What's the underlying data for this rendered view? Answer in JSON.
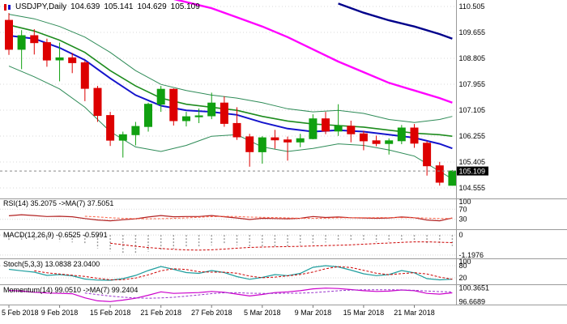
{
  "header": {
    "symbol": "USDJPY,Daily",
    "open": "104.639",
    "high": "105.141",
    "low": "104.629",
    "close": "105.109"
  },
  "colors": {
    "background": "#FFFFFF",
    "grid": "#D8D8D8",
    "bull": "#10A010",
    "bear": "#DD0000",
    "separator": "#9A9A9A",
    "current_price_line": "#888888",
    "price_label_bg": "#000000",
    "price_label_text": "#FFFFFF",
    "axis_text": "#000000"
  },
  "chart_data": {
    "type": "candlestick",
    "symbol": "USDJPY",
    "timeframe": "Daily",
    "current_price": 105.109,
    "y_ticks": [
      110.505,
      109.655,
      108.805,
      107.955,
      107.105,
      106.255,
      105.405,
      104.555
    ],
    "x_labels": [
      [
        0,
        "5 Feb 2018"
      ],
      [
        4,
        "9 Feb 2018"
      ],
      [
        8,
        "15 Feb 2018"
      ],
      [
        12,
        "21 Feb 2018"
      ],
      [
        16,
        "27 Feb 2018"
      ],
      [
        20,
        "5 Mar 2018"
      ],
      [
        24,
        "9 Mar 2018"
      ],
      [
        28,
        "15 Mar 2018"
      ],
      [
        32,
        "21 Mar 2018"
      ]
    ],
    "candles_ohlc": [
      [
        "5 Feb 2018",
        110.05,
        110.29,
        108.92,
        109.1
      ],
      [
        "6 Feb 2018",
        109.1,
        109.73,
        108.45,
        109.55
      ],
      [
        "7 Feb 2018",
        109.55,
        109.76,
        108.93,
        109.32
      ],
      [
        "8 Feb 2018",
        109.32,
        109.45,
        108.53,
        108.75
      ],
      [
        "9 Feb 2018",
        108.75,
        109.32,
        108.05,
        108.82
      ],
      [
        "12 Feb 2018",
        108.82,
        108.98,
        108.32,
        108.66
      ],
      [
        "13 Feb 2018",
        108.66,
        108.73,
        107.4,
        107.82
      ],
      [
        "14 Feb 2018",
        107.82,
        107.9,
        106.72,
        106.93
      ],
      [
        "15 Feb 2018",
        106.93,
        107.05,
        105.93,
        106.12
      ],
      [
        "16 Feb 2018",
        106.12,
        106.4,
        105.55,
        106.3
      ],
      [
        "19 Feb 2018",
        106.3,
        106.72,
        105.95,
        106.57
      ],
      [
        "20 Feb 2018",
        106.57,
        107.35,
        106.4,
        107.3
      ],
      [
        "21 Feb 2018",
        107.3,
        107.9,
        107.05,
        107.79
      ],
      [
        "22 Feb 2018",
        107.79,
        107.82,
        106.6,
        106.76
      ],
      [
        "23 Feb 2018",
        106.76,
        107.05,
        106.57,
        106.89
      ],
      [
        "26 Feb 2018",
        106.89,
        107.16,
        106.68,
        106.92
      ],
      [
        "27 Feb 2018",
        106.92,
        107.68,
        106.81,
        107.34
      ],
      [
        "28 Feb 2018",
        107.34,
        107.56,
        106.56,
        106.67
      ],
      [
        "1 Mar 2018",
        106.67,
        107.2,
        106.13,
        106.23
      ],
      [
        "2 Mar 2018",
        106.23,
        106.33,
        105.25,
        105.74
      ],
      [
        "5 Mar 2018",
        105.74,
        106.25,
        105.35,
        106.2
      ],
      [
        "6 Mar 2018",
        106.2,
        106.46,
        105.84,
        106.13
      ],
      [
        "7 Mar 2018",
        106.13,
        106.24,
        105.45,
        106.06
      ],
      [
        "8 Mar 2018",
        106.06,
        106.33,
        105.89,
        106.17
      ],
      [
        "9 Mar 2018",
        106.17,
        106.97,
        106.15,
        106.82
      ],
      [
        "12 Mar 2018",
        106.82,
        107.05,
        106.32,
        106.42
      ],
      [
        "13 Mar 2018",
        106.42,
        107.3,
        106.26,
        106.58
      ],
      [
        "14 Mar 2018",
        106.58,
        106.76,
        106.05,
        106.33
      ],
      [
        "15 Mar 2018",
        106.33,
        106.43,
        105.79,
        106.1
      ],
      [
        "16 Mar 2018",
        106.1,
        106.27,
        105.92,
        106.01
      ],
      [
        "19 Mar 2018",
        106.01,
        106.18,
        105.65,
        106.1
      ],
      [
        "20 Mar 2018",
        106.1,
        106.62,
        105.99,
        106.52
      ],
      [
        "21 Mar 2018",
        106.52,
        106.65,
        105.87,
        106.02
      ],
      [
        "22 Mar 2018",
        106.02,
        106.09,
        104.96,
        105.28
      ],
      [
        "23 Mar 2018",
        105.28,
        105.41,
        104.63,
        104.74
      ],
      [
        "26 Mar 2018",
        104.639,
        105.141,
        104.629,
        105.109
      ]
    ],
    "overlays": [
      {
        "name": "bollinger-upper-band",
        "color": "#2E8B57",
        "width": 1,
        "points": [
          [
            0,
            110.25
          ],
          [
            2,
            110.1
          ],
          [
            4,
            109.85
          ],
          [
            6,
            109.5
          ],
          [
            8,
            109.0
          ],
          [
            10,
            108.4
          ],
          [
            12,
            107.95
          ],
          [
            14,
            107.75
          ],
          [
            16,
            107.6
          ],
          [
            18,
            107.5
          ],
          [
            20,
            107.35
          ],
          [
            22,
            107.15
          ],
          [
            24,
            107.05
          ],
          [
            26,
            107.1
          ],
          [
            28,
            107.0
          ],
          [
            30,
            106.8
          ],
          [
            32,
            106.7
          ],
          [
            34,
            106.8
          ],
          [
            35,
            106.9
          ]
        ]
      },
      {
        "name": "bollinger-lower-band",
        "color": "#2E8B57",
        "width": 1,
        "points": [
          [
            0,
            108.55
          ],
          [
            2,
            108.2
          ],
          [
            4,
            107.8
          ],
          [
            6,
            107.2
          ],
          [
            8,
            106.4
          ],
          [
            10,
            105.9
          ],
          [
            12,
            105.75
          ],
          [
            14,
            105.95
          ],
          [
            16,
            106.25
          ],
          [
            18,
            106.3
          ],
          [
            20,
            105.9
          ],
          [
            22,
            105.75
          ],
          [
            24,
            105.85
          ],
          [
            26,
            106.0
          ],
          [
            28,
            105.95
          ],
          [
            30,
            105.8
          ],
          [
            32,
            105.6
          ],
          [
            34,
            105.1
          ],
          [
            35,
            104.85
          ]
        ]
      },
      {
        "name": "ma-green",
        "color": "#1E8C1E",
        "width": 1.6,
        "points": [
          [
            0,
            109.9
          ],
          [
            2,
            109.7
          ],
          [
            4,
            109.4
          ],
          [
            6,
            109.0
          ],
          [
            8,
            108.4
          ],
          [
            10,
            107.9
          ],
          [
            12,
            107.5
          ],
          [
            14,
            107.3
          ],
          [
            16,
            107.2
          ],
          [
            18,
            107.1
          ],
          [
            20,
            106.9
          ],
          [
            22,
            106.75
          ],
          [
            24,
            106.65
          ],
          [
            26,
            106.6
          ],
          [
            28,
            106.55
          ],
          [
            30,
            106.45
          ],
          [
            32,
            106.35
          ],
          [
            34,
            106.3
          ],
          [
            35,
            106.25
          ]
        ]
      },
      {
        "name": "ma-blue",
        "color": "#1414CC",
        "width": 2,
        "points": [
          [
            0,
            109.55
          ],
          [
            2,
            109.45
          ],
          [
            4,
            109.15
          ],
          [
            6,
            108.75
          ],
          [
            8,
            108.15
          ],
          [
            10,
            107.6
          ],
          [
            12,
            107.25
          ],
          [
            14,
            107.1
          ],
          [
            16,
            107.05
          ],
          [
            18,
            106.95
          ],
          [
            20,
            106.7
          ],
          [
            22,
            106.5
          ],
          [
            24,
            106.4
          ],
          [
            26,
            106.45
          ],
          [
            28,
            106.4
          ],
          [
            30,
            106.3
          ],
          [
            32,
            106.2
          ],
          [
            34,
            106.0
          ],
          [
            35,
            105.85
          ]
        ]
      },
      {
        "name": "ma-magenta",
        "color": "#FF00FF",
        "width": 2.4,
        "points": [
          [
            13,
            110.75
          ],
          [
            16,
            110.45
          ],
          [
            18,
            110.15
          ],
          [
            20,
            109.85
          ],
          [
            22,
            109.5
          ],
          [
            24,
            109.1
          ],
          [
            26,
            108.7
          ],
          [
            28,
            108.35
          ],
          [
            30,
            108.0
          ],
          [
            32,
            107.75
          ],
          [
            34,
            107.5
          ],
          [
            35,
            107.35
          ]
        ]
      },
      {
        "name": "ma-navy",
        "color": "#00008B",
        "width": 2.4,
        "points": [
          [
            26,
            110.6
          ],
          [
            28,
            110.3
          ],
          [
            30,
            110.05
          ],
          [
            32,
            109.85
          ],
          [
            34,
            109.6
          ],
          [
            35,
            109.45
          ]
        ]
      }
    ],
    "indicators": [
      {
        "id": "rsi",
        "name": "RSI",
        "label": "RSI(14) 35.2075 ->MA(7) 37.5051",
        "type": "line",
        "range": [
          0,
          100
        ],
        "levels": [
          70,
          30
        ],
        "scale_labels": [
          [
            "100",
            100
          ],
          [
            "70",
            70
          ],
          [
            "30",
            30
          ]
        ],
        "color": "#B22222",
        "signal_color": "#FF6347",
        "signal_period": 7,
        "values": [
          44,
          48,
          45,
          41,
          42,
          40,
          33,
          27,
          24,
          28,
          32,
          39,
          45,
          40,
          41,
          41,
          45,
          40,
          35,
          29,
          34,
          33,
          32,
          34,
          41,
          37,
          39,
          36,
          35,
          34,
          35,
          39,
          36,
          27,
          24,
          35.2
        ]
      },
      {
        "id": "macd",
        "name": "MACD",
        "label": "MACD(12,26,9) -0.6525 -0.5991",
        "type": "histogram",
        "range": [
          -1.25,
          0.15
        ],
        "levels": [
          0,
          -1.1976
        ],
        "scale_labels": [
          [
            "0",
            0
          ],
          [
            "-1.1976",
            -1.1976
          ]
        ],
        "color": "#9A9A9A",
        "signal_color": "#CC0000",
        "signal_period": 9,
        "values": [
          -0.3,
          -0.28,
          -0.3,
          -0.35,
          -0.4,
          -0.44,
          -0.58,
          -0.8,
          -0.98,
          -1.08,
          -1.1,
          -1.0,
          -0.88,
          -0.82,
          -0.76,
          -0.7,
          -0.62,
          -0.58,
          -0.62,
          -0.72,
          -0.78,
          -0.74,
          -0.7,
          -0.62,
          -0.5,
          -0.44,
          -0.4,
          -0.38,
          -0.4,
          -0.43,
          -0.41,
          -0.36,
          -0.38,
          -0.5,
          -0.6,
          -0.65
        ]
      },
      {
        "id": "stoch",
        "name": "Stochastic",
        "label": "Stoch(5,3,3) 13.0838 23.0400",
        "type": "line",
        "range": [
          0,
          100
        ],
        "levels": [
          80,
          20
        ],
        "scale_labels": [
          [
            "100",
            100
          ],
          [
            "80",
            80
          ],
          [
            "20",
            20
          ]
        ],
        "color": "#1F9E9E",
        "signal_color": "#CC0000",
        "signal_period": 3,
        "values": [
          62,
          55,
          48,
          32,
          36,
          30,
          14,
          9,
          8,
          16,
          32,
          56,
          76,
          62,
          46,
          42,
          56,
          46,
          26,
          13,
          22,
          36,
          31,
          42,
          72,
          80,
          74,
          58,
          40,
          31,
          36,
          56,
          45,
          16,
          10,
          13.1
        ]
      },
      {
        "id": "momentum",
        "name": "Momentum",
        "label": "Momentum(14) 99.0510 ->MA(7) 99.2404",
        "type": "line",
        "range": [
          96.55,
          100.45
        ],
        "levels": [],
        "scale_labels": [
          [
            "100.3651",
            100.3651
          ],
          [
            "96.6689",
            96.6689
          ]
        ],
        "color": "#CC00CC",
        "signal_color": "#9932CC",
        "signal_period": 7,
        "values": [
          99.7,
          99.5,
          99.2,
          99.0,
          98.9,
          98.8,
          97.7,
          96.9,
          96.7,
          97.1,
          97.6,
          98.4,
          99.3,
          98.9,
          99.0,
          99.1,
          99.4,
          99.2,
          98.7,
          98.2,
          98.6,
          99.1,
          99.3,
          99.6,
          100.1,
          100.3,
          100.2,
          99.9,
          99.6,
          99.4,
          99.5,
          99.8,
          99.6,
          98.9,
          98.7,
          99.05
        ]
      }
    ]
  }
}
